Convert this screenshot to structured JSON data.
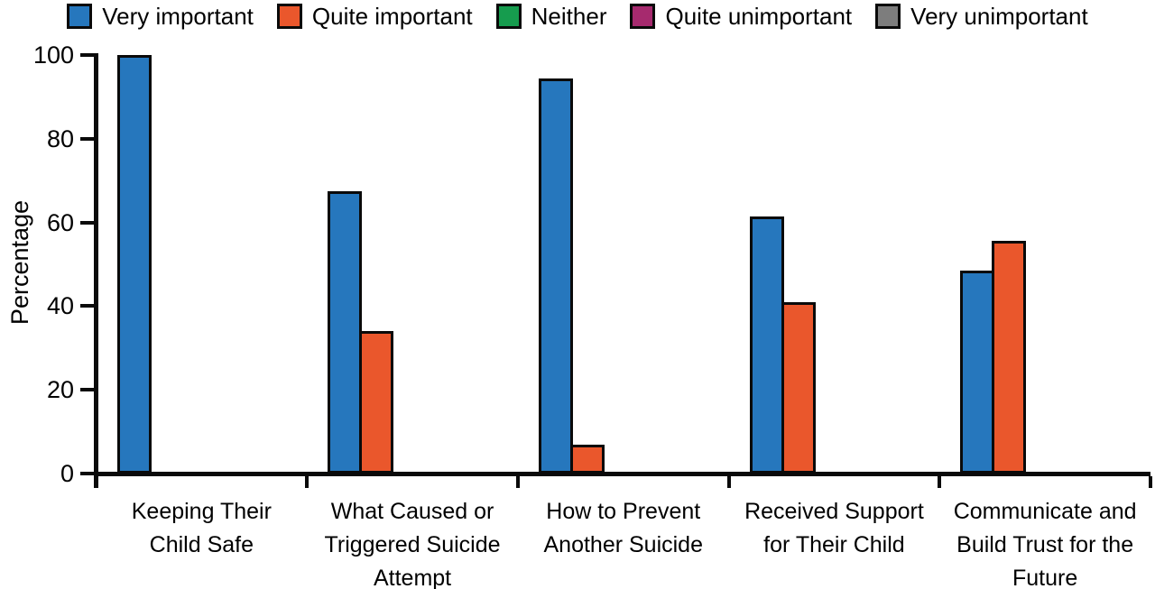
{
  "chart_data": {
    "type": "bar",
    "title": "",
    "xlabel": "",
    "ylabel": "Percentage",
    "ylim": [
      0,
      100
    ],
    "yticks": [
      0,
      20,
      40,
      60,
      80,
      100
    ],
    "grid": false,
    "legend_position": "top",
    "bar_border_color": "#0a0a0a",
    "categories": [
      "Keeping Their\nChild Safe",
      "What Caused or\nTriggered Suicide\nAttempt",
      "How to Prevent\nAnother Suicide",
      "Received Support\nfor Their Child",
      "Communicate and\nBuild Trust for the\nFuture"
    ],
    "series": [
      {
        "name": "Very important",
        "color": "#2677BD",
        "values": [
          100,
          67.5,
          94.5,
          61.5,
          48.5
        ]
      },
      {
        "name": "Quite important",
        "color": "#EA572C",
        "values": [
          0,
          34,
          7,
          41,
          55.5
        ]
      },
      {
        "name": "Neither",
        "color": "#169C4E",
        "values": [
          0,
          0,
          0,
          0,
          0
        ]
      },
      {
        "name": "Quite unimportant",
        "color": "#A62A6E",
        "values": [
          0,
          0,
          0,
          0,
          0
        ]
      },
      {
        "name": "Very unimportant",
        "color": "#7D7D7D",
        "values": [
          0,
          0,
          0,
          0,
          0
        ]
      }
    ]
  }
}
